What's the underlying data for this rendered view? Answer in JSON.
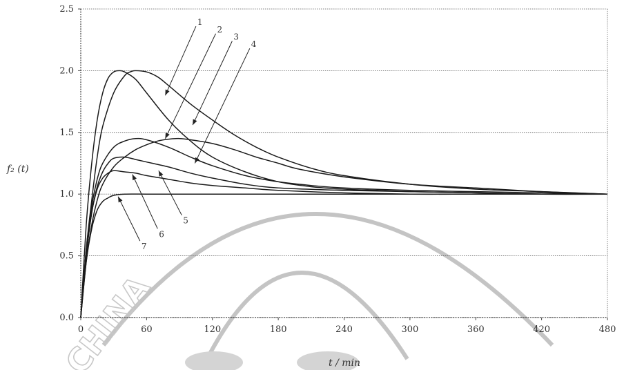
{
  "chart_data": {
    "type": "line",
    "xlabel": "t / min",
    "ylabel": "f₂ (t)",
    "xlim": [
      0,
      480
    ],
    "ylim": [
      0,
      2.5
    ],
    "xticks": [
      "0",
      "60",
      "120",
      "180",
      "240",
      "300",
      "360",
      "420",
      "480"
    ],
    "yticks": [
      "0.0",
      "0.5",
      "1.0",
      "1.5",
      "2.0",
      "2.5"
    ],
    "grid": "horizontal",
    "series": [
      {
        "name": "1",
        "x": [
          0,
          5,
          10,
          15,
          20,
          25,
          30,
          35,
          40,
          50,
          60,
          80,
          100,
          120,
          150,
          180,
          210,
          240,
          270,
          300,
          360,
          420,
          480
        ],
        "y": [
          0,
          0.75,
          1.25,
          1.6,
          1.82,
          1.94,
          1.99,
          2.0,
          1.99,
          1.93,
          1.82,
          1.6,
          1.43,
          1.3,
          1.18,
          1.1,
          1.06,
          1.04,
          1.03,
          1.02,
          1.01,
          1.0,
          1.0
        ]
      },
      {
        "name": "2",
        "x": [
          0,
          5,
          10,
          15,
          20,
          30,
          40,
          45,
          50,
          60,
          70,
          80,
          100,
          120,
          140,
          160,
          180,
          210,
          240,
          300,
          360,
          420,
          480
        ],
        "y": [
          0,
          0.55,
          0.95,
          1.3,
          1.55,
          1.82,
          1.96,
          1.99,
          2.0,
          1.99,
          1.95,
          1.88,
          1.73,
          1.6,
          1.48,
          1.38,
          1.3,
          1.21,
          1.15,
          1.08,
          1.04,
          1.02,
          1.0
        ]
      },
      {
        "name": "3",
        "x": [
          0,
          5,
          10,
          15,
          20,
          30,
          40,
          50,
          60,
          80,
          100,
          120,
          150,
          180,
          210,
          240,
          300,
          360,
          420,
          480
        ],
        "y": [
          0,
          0.55,
          0.9,
          1.12,
          1.25,
          1.38,
          1.43,
          1.45,
          1.44,
          1.38,
          1.3,
          1.23,
          1.15,
          1.1,
          1.07,
          1.05,
          1.03,
          1.02,
          1.01,
          1.0
        ]
      },
      {
        "name": "4",
        "x": [
          0,
          5,
          10,
          15,
          20,
          30,
          40,
          50,
          60,
          70,
          80,
          90,
          100,
          120,
          140,
          160,
          180,
          200,
          240,
          300,
          360,
          420,
          480
        ],
        "y": [
          0,
          0.45,
          0.75,
          0.95,
          1.08,
          1.22,
          1.3,
          1.36,
          1.4,
          1.43,
          1.445,
          1.45,
          1.44,
          1.41,
          1.36,
          1.3,
          1.25,
          1.2,
          1.14,
          1.08,
          1.05,
          1.02,
          1.0
        ]
      },
      {
        "name": "5",
        "x": [
          0,
          5,
          10,
          15,
          20,
          25,
          30,
          40,
          50,
          60,
          80,
          100,
          120,
          150,
          180,
          240,
          300,
          360,
          420,
          480
        ],
        "y": [
          0,
          0.5,
          0.85,
          1.06,
          1.18,
          1.25,
          1.29,
          1.3,
          1.28,
          1.26,
          1.22,
          1.17,
          1.13,
          1.08,
          1.05,
          1.03,
          1.02,
          1.01,
          1.0,
          1.0
        ]
      },
      {
        "name": "6",
        "x": [
          0,
          5,
          10,
          15,
          20,
          25,
          30,
          40,
          50,
          60,
          80,
          100,
          120,
          150,
          180,
          240,
          300,
          360,
          420,
          480
        ],
        "y": [
          0,
          0.5,
          0.85,
          1.04,
          1.13,
          1.17,
          1.19,
          1.18,
          1.17,
          1.15,
          1.12,
          1.09,
          1.07,
          1.05,
          1.03,
          1.01,
          1.0,
          1.0,
          1.0,
          1.0
        ]
      },
      {
        "name": "7",
        "x": [
          0,
          5,
          10,
          15,
          20,
          25,
          30,
          40,
          60,
          80,
          120,
          180,
          240,
          300,
          360,
          420,
          480
        ],
        "y": [
          0,
          0.45,
          0.72,
          0.87,
          0.94,
          0.97,
          0.99,
          1.0,
          1.0,
          1.0,
          1.0,
          1.0,
          1.0,
          1.0,
          1.0,
          1.0,
          1.0
        ]
      }
    ],
    "annotations": [
      "1",
      "2",
      "3",
      "4",
      "5",
      "6",
      "7"
    ]
  },
  "watermark": {
    "text": "CHINA"
  }
}
